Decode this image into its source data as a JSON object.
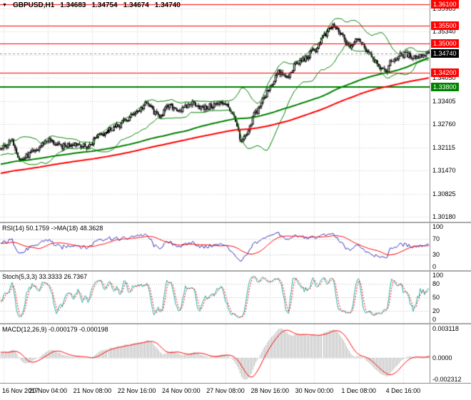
{
  "header": {
    "collapse_icon": "▼",
    "symbol": "GBPUSD,H1",
    "open": "1.34683",
    "high": "1.34754",
    "low": "1.34674",
    "close": "1.34740"
  },
  "chart_data": [
    {
      "id": "main",
      "type": "candlestick",
      "symbol": "GBPUSD",
      "timeframe": "H1",
      "last_ohlc": {
        "open": 1.34683,
        "high": 1.34754,
        "low": 1.34674,
        "close": 1.3474
      },
      "bars": 300,
      "ylim": [
        1.3005,
        1.3622
      ],
      "yticks": [
        "1.35985",
        "1.35340",
        "1.34695",
        "1.34050",
        "1.33405",
        "1.32760",
        "1.32115",
        "1.31470",
        "1.30825",
        "1.30180"
      ],
      "x_labels": [
        {
          "bar": 2,
          "label": "16 Nov 2017"
        },
        {
          "bar": 33,
          "label": "20 Nov 04:00"
        },
        {
          "bar": 64,
          "label": "21 Nov 08:00"
        },
        {
          "bar": 95,
          "label": "22 Nov 16:00"
        },
        {
          "bar": 126,
          "label": "24 Nov 00:00"
        },
        {
          "bar": 157,
          "label": "27 Nov 08:00"
        },
        {
          "bar": 188,
          "label": "28 Nov 16:00"
        },
        {
          "bar": 219,
          "label": "30 Nov 00:00"
        },
        {
          "bar": 250,
          "label": "1 Dec 08:00"
        },
        {
          "bar": 281,
          "label": "4 Dec 16:00"
        }
      ],
      "price_path": [
        [
          0,
          1.3208
        ],
        [
          8,
          1.3228
        ],
        [
          14,
          1.3178
        ],
        [
          22,
          1.3196
        ],
        [
          33,
          1.3232
        ],
        [
          42,
          1.3214
        ],
        [
          52,
          1.3224
        ],
        [
          60,
          1.3213
        ],
        [
          70,
          1.3252
        ],
        [
          80,
          1.3268
        ],
        [
          88,
          1.3288
        ],
        [
          95,
          1.3312
        ],
        [
          102,
          1.3332
        ],
        [
          110,
          1.33
        ],
        [
          118,
          1.3326
        ],
        [
          126,
          1.3316
        ],
        [
          134,
          1.3336
        ],
        [
          142,
          1.332
        ],
        [
          150,
          1.3331
        ],
        [
          157,
          1.3336
        ],
        [
          163,
          1.3298
        ],
        [
          168,
          1.3225
        ],
        [
          172,
          1.3248
        ],
        [
          178,
          1.331
        ],
        [
          184,
          1.3348
        ],
        [
          188,
          1.3382
        ],
        [
          194,
          1.342
        ],
        [
          200,
          1.3406
        ],
        [
          206,
          1.3442
        ],
        [
          212,
          1.3458
        ],
        [
          219,
          1.3482
        ],
        [
          226,
          1.3522
        ],
        [
          232,
          1.355
        ],
        [
          238,
          1.3524
        ],
        [
          243,
          1.3492
        ],
        [
          250,
          1.3512
        ],
        [
          256,
          1.3482
        ],
        [
          262,
          1.3452
        ],
        [
          268,
          1.3421
        ],
        [
          274,
          1.3456
        ],
        [
          281,
          1.347
        ],
        [
          290,
          1.3464
        ],
        [
          299,
          1.3474
        ]
      ],
      "levels": [
        {
          "price": 1.361,
          "label": "1.36100",
          "color": "#ff0000",
          "width": 1
        },
        {
          "price": 1.355,
          "label": "1.35500",
          "color": "#ff0000",
          "width": 1
        },
        {
          "price": 1.35,
          "label": "1.35000",
          "color": "#ff0000",
          "width": 1
        },
        {
          "price": 1.342,
          "label": "1.34200",
          "color": "#ff0000",
          "width": 1
        },
        {
          "price": 1.338,
          "label": "1.33800",
          "color": "#008000",
          "width": 2
        }
      ],
      "bid": {
        "price": 1.3474,
        "label": "1.34740",
        "badge_color": "#000000"
      },
      "indicators": {
        "bollinger": {
          "period": 20,
          "deviation": 2,
          "color": "#008000",
          "width": 1
        },
        "ma_fast": {
          "period": 120,
          "color": "#008000",
          "width": 2
        },
        "ma_slow": {
          "period": 190,
          "color": "#ff0000",
          "width": 2
        }
      },
      "colors": {
        "background": "#ffffff",
        "grid": "#cccccc",
        "candle": "#000000",
        "bull_fill": "#ffffff",
        "bear_fill": "#000000"
      }
    },
    {
      "id": "rsi",
      "type": "line",
      "label": "RSI(14) 50.1759 ->MA(18) 48.3628",
      "params": {
        "period": 14,
        "ma_period": 18
      },
      "values": {
        "rsi": 50.1759,
        "ma": 48.3628
      },
      "ylim": [
        -8,
        108
      ],
      "yticks": [
        "100",
        "70",
        "30",
        "0"
      ],
      "levels": [
        70,
        30
      ],
      "colors": {
        "rsi": "#3333bb",
        "ma": "#ff0000",
        "level": "#bbbbbb"
      }
    },
    {
      "id": "stoch",
      "type": "line",
      "label": "Stoch(5,3,3) 33.3333 26.7367",
      "params": {
        "k": 5,
        "d": 3,
        "slowing": 3
      },
      "values": {
        "main": 33.3333,
        "signal": 26.7367
      },
      "ylim": [
        -8,
        108
      ],
      "yticks": [
        "100",
        "80",
        "50",
        "20",
        "0"
      ],
      "levels": [
        80,
        50,
        20
      ],
      "colors": {
        "main": "#20b2aa",
        "signal": "#ff0000",
        "level": "#bbbbbb"
      }
    },
    {
      "id": "macd",
      "type": "histogram",
      "label": "MACD(12,26,9) -0.000179 -0.000198",
      "params": {
        "fast": 12,
        "slow": 26,
        "signal": 9
      },
      "values": {
        "macd": -0.000179,
        "signal": -0.000198
      },
      "ylim": [
        -0.0027,
        0.0036
      ],
      "yticks": [
        "0.003118",
        "0.0000",
        "-0.002312"
      ],
      "levels": [
        0
      ],
      "colors": {
        "histogram": "#b8b8b8",
        "signal": "#ff0000",
        "level": "#bbbbbb"
      }
    }
  ]
}
